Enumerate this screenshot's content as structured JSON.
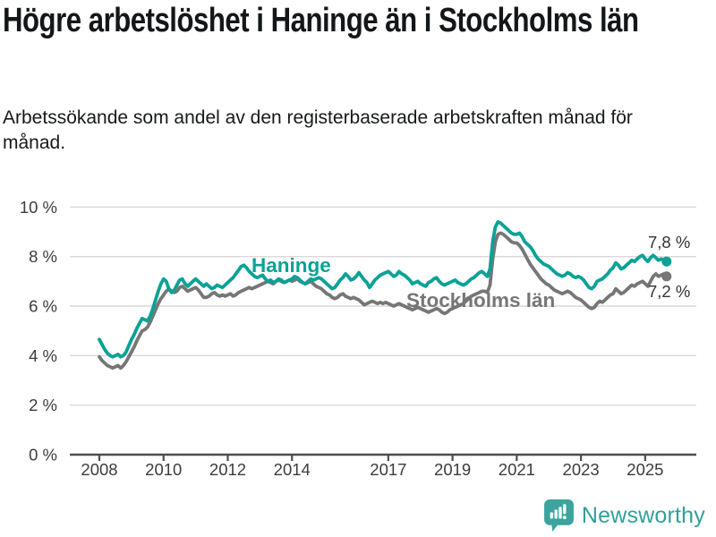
{
  "header": {
    "title": "Högre arbetslöshet i Haninge än i Stockholms län",
    "subtitle": "Arbetssökande som andel av den registerbaserade arbetskraften månad för månad."
  },
  "chart_data": {
    "type": "line",
    "x_start_year": 2008,
    "x_end": "2025-09",
    "points_per_year": 12,
    "ylim": [
      0,
      10
    ],
    "grid": "horizontal",
    "ytick_values": [
      0,
      2,
      4,
      6,
      8,
      10
    ],
    "ytick_labels": [
      "0 %",
      "2 %",
      "4 %",
      "6 %",
      "8 %",
      "10 %"
    ],
    "xtick_values": [
      2008,
      2010,
      2012,
      2014,
      2017,
      2019,
      2021,
      2023,
      2025
    ],
    "xtick_labels": [
      "2008",
      "2010",
      "2012",
      "2014",
      "2017",
      "2019",
      "2021",
      "2023",
      "2025"
    ],
    "series": [
      {
        "name": "Haninge",
        "color": "#0aa296",
        "end_label": "7,8 %",
        "values": [
          4.65,
          4.45,
          4.25,
          4.1,
          4.0,
          3.95,
          4.0,
          4.05,
          3.95,
          4.0,
          4.15,
          4.4,
          4.65,
          4.85,
          5.1,
          5.3,
          5.5,
          5.45,
          5.4,
          5.6,
          5.9,
          6.25,
          6.6,
          6.9,
          7.1,
          7.0,
          6.7,
          6.55,
          6.65,
          6.85,
          7.05,
          7.1,
          6.9,
          6.8,
          6.9,
          7.0,
          7.1,
          7.0,
          6.9,
          6.8,
          6.9,
          6.8,
          6.7,
          6.75,
          6.85,
          6.8,
          6.75,
          6.85,
          6.95,
          7.05,
          7.15,
          7.3,
          7.45,
          7.6,
          7.65,
          7.55,
          7.4,
          7.3,
          7.2,
          7.15,
          7.2,
          7.25,
          7.1,
          7.0,
          7.05,
          6.95,
          7.0,
          7.1,
          7.05,
          6.95,
          7.0,
          7.05,
          7.1,
          7.2,
          7.15,
          7.05,
          6.95,
          6.9,
          7.0,
          7.1,
          7.05,
          7.1,
          7.15,
          7.1,
          7.0,
          6.9,
          6.8,
          6.7,
          6.75,
          6.9,
          7.05,
          7.15,
          7.3,
          7.2,
          7.05,
          7.1,
          7.2,
          7.35,
          7.2,
          7.05,
          6.95,
          6.75,
          6.9,
          7.05,
          7.15,
          7.25,
          7.3,
          7.35,
          7.4,
          7.3,
          7.2,
          7.25,
          7.4,
          7.3,
          7.25,
          7.15,
          7.05,
          6.9,
          6.95,
          7.0,
          6.9,
          6.85,
          6.8,
          6.95,
          7.0,
          7.1,
          7.15,
          7.0,
          6.9,
          6.85,
          6.9,
          6.95,
          7.0,
          7.05,
          6.95,
          6.9,
          6.85,
          6.9,
          7.0,
          7.1,
          7.15,
          7.25,
          7.35,
          7.4,
          7.3,
          7.2,
          7.5,
          8.6,
          9.2,
          9.4,
          9.35,
          9.25,
          9.15,
          9.05,
          8.95,
          8.9,
          8.9,
          8.95,
          8.8,
          8.6,
          8.5,
          8.4,
          8.25,
          8.05,
          7.9,
          7.8,
          7.7,
          7.65,
          7.6,
          7.5,
          7.4,
          7.3,
          7.25,
          7.2,
          7.25,
          7.35,
          7.3,
          7.2,
          7.15,
          7.2,
          7.15,
          7.05,
          6.9,
          6.75,
          6.7,
          6.8,
          7.0,
          7.05,
          7.1,
          7.2,
          7.3,
          7.45,
          7.55,
          7.75,
          7.65,
          7.5,
          7.55,
          7.65,
          7.75,
          7.85,
          7.8,
          7.9,
          8.0,
          8.05,
          7.9,
          7.8,
          7.95,
          8.05,
          7.95,
          7.85,
          7.9,
          7.85,
          7.8
        ]
      },
      {
        "name": "Stockholms län",
        "color": "#767676",
        "end_label": "7,2 %",
        "values": [
          3.95,
          3.8,
          3.7,
          3.6,
          3.55,
          3.5,
          3.55,
          3.6,
          3.5,
          3.6,
          3.75,
          3.95,
          4.15,
          4.35,
          4.6,
          4.8,
          5.0,
          5.05,
          5.15,
          5.35,
          5.6,
          5.85,
          6.1,
          6.3,
          6.45,
          6.6,
          6.7,
          6.6,
          6.55,
          6.6,
          6.75,
          6.8,
          6.7,
          6.6,
          6.65,
          6.7,
          6.75,
          6.65,
          6.5,
          6.35,
          6.35,
          6.4,
          6.5,
          6.55,
          6.45,
          6.4,
          6.45,
          6.4,
          6.45,
          6.5,
          6.4,
          6.45,
          6.55,
          6.6,
          6.65,
          6.7,
          6.75,
          6.7,
          6.75,
          6.8,
          6.85,
          6.9,
          6.95,
          7.0,
          6.95,
          6.9,
          7.0,
          7.05,
          7.0,
          6.95,
          7.0,
          7.05,
          7.0,
          7.05,
          7.1,
          7.0,
          6.95,
          6.9,
          6.95,
          7.0,
          6.9,
          6.8,
          6.75,
          6.7,
          6.6,
          6.5,
          6.45,
          6.35,
          6.3,
          6.35,
          6.45,
          6.5,
          6.4,
          6.35,
          6.3,
          6.35,
          6.3,
          6.25,
          6.15,
          6.05,
          6.1,
          6.15,
          6.2,
          6.15,
          6.1,
          6.15,
          6.1,
          6.15,
          6.1,
          6.05,
          6.0,
          6.05,
          6.1,
          6.05,
          6.0,
          5.95,
          5.9,
          5.85,
          5.9,
          5.95,
          5.9,
          5.85,
          5.8,
          5.75,
          5.8,
          5.85,
          5.9,
          5.85,
          5.75,
          5.7,
          5.75,
          5.85,
          5.9,
          5.95,
          6.0,
          6.05,
          6.1,
          6.2,
          6.3,
          6.4,
          6.45,
          6.5,
          6.55,
          6.6,
          6.6,
          6.55,
          6.85,
          7.9,
          8.6,
          8.9,
          8.95,
          8.9,
          8.8,
          8.7,
          8.6,
          8.55,
          8.55,
          8.45,
          8.3,
          8.1,
          7.9,
          7.7,
          7.55,
          7.4,
          7.25,
          7.1,
          7.0,
          6.9,
          6.85,
          6.75,
          6.65,
          6.6,
          6.55,
          6.5,
          6.55,
          6.6,
          6.55,
          6.45,
          6.35,
          6.3,
          6.25,
          6.15,
          6.05,
          5.95,
          5.9,
          5.95,
          6.1,
          6.2,
          6.15,
          6.25,
          6.35,
          6.45,
          6.5,
          6.7,
          6.6,
          6.5,
          6.55,
          6.65,
          6.75,
          6.85,
          6.8,
          6.9,
          6.95,
          7.0,
          6.9,
          6.8,
          7.0,
          7.2,
          7.3,
          7.2,
          7.25,
          7.3,
          7.2
        ]
      }
    ]
  },
  "footer": {
    "brand": "Newsworthy",
    "colors": {
      "logo_teal": "#3ba49d",
      "text_teal": "#31a09a"
    }
  }
}
